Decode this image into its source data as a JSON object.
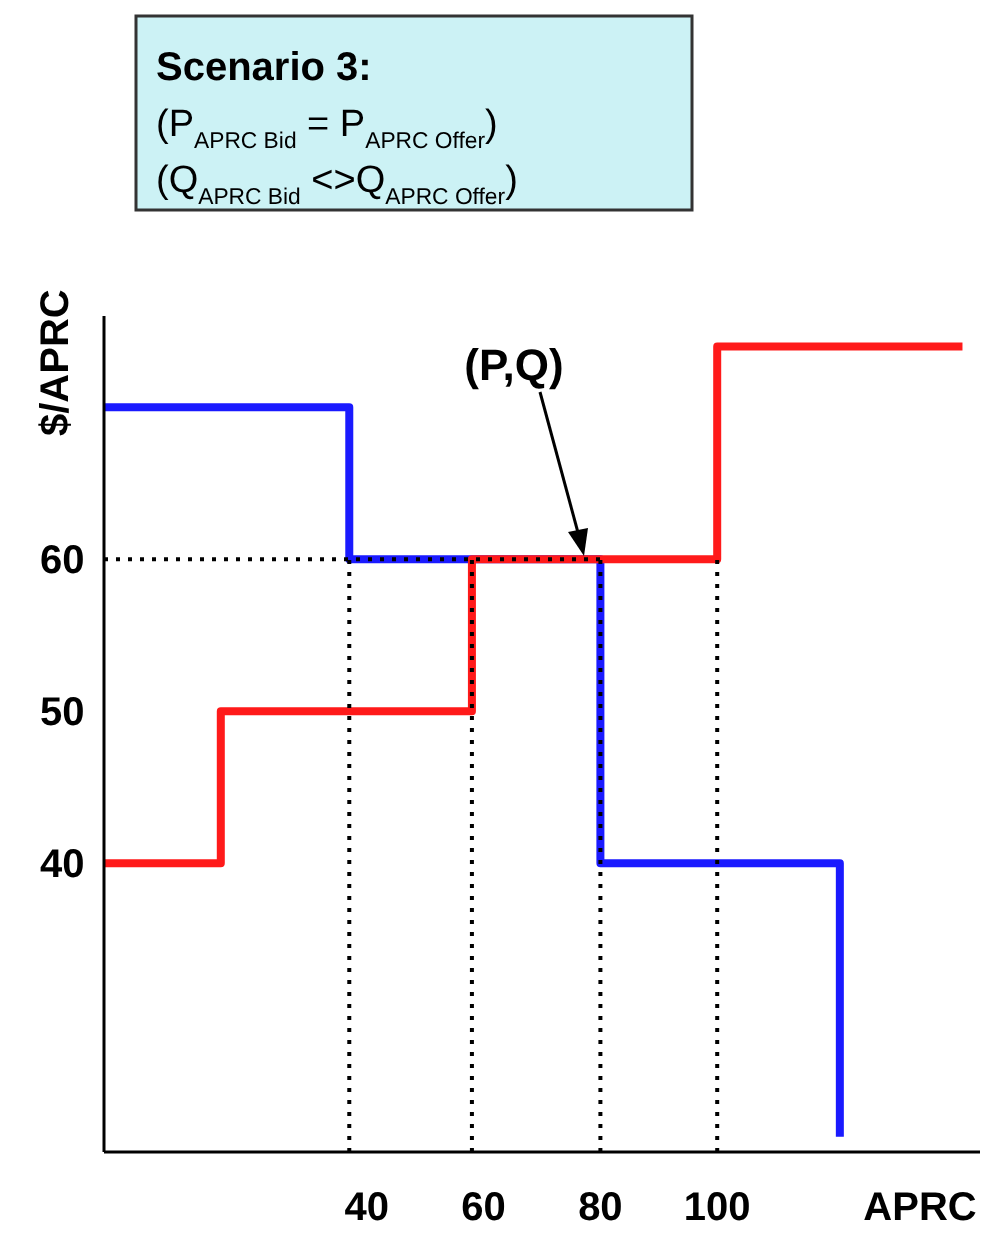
{
  "chart_data": {
    "type": "step",
    "title": "Scenario 3:",
    "subtitle": "(P$_{APRC Bid}$ = P$_{APRC Offer}$)\n(Q$_{APRC Bid}$ <>Q$_{APRC Offer}$)",
    "xlabel": "APRC",
    "ylabel": "$/APRC",
    "xlim": [
      -5,
      145
    ],
    "ylim": [
      21,
      76
    ],
    "xticks": [
      40,
      60,
      80,
      100
    ],
    "yticks": [
      40,
      50,
      60
    ],
    "series": [
      {
        "color": "#1a1aff",
        "x": [
          -5,
          37,
          80,
          121
        ],
        "values": [
          70,
          60,
          40,
          22
        ]
      },
      {
        "color": "#ff1a1a",
        "x": [
          -5,
          15,
          58,
          100,
          142
        ],
        "values": [
          40,
          50,
          60,
          74,
          74
        ]
      },
      {
        "type": "line",
        "color": "#000000",
        "line_style": "dotted",
        "x": [
          -5,
          80
        ],
        "values": [
          60,
          60
        ]
      },
      {
        "type": "line",
        "color": "#000000",
        "line_style": "dotted",
        "x": [
          37,
          37
        ],
        "values": [
          21,
          60
        ]
      },
      {
        "type": "line",
        "color": "#000000",
        "line_style": "dotted",
        "x": [
          58,
          58
        ],
        "values": [
          21,
          60
        ]
      },
      {
        "type": "line",
        "color": "#000000",
        "line_style": "dotted",
        "x": [
          80,
          80
        ],
        "values": [
          21,
          60
        ]
      },
      {
        "type": "line",
        "color": "#000000",
        "line_style": "dotted",
        "x": [
          100,
          100
        ],
        "values": [
          21,
          60
        ]
      }
    ],
    "annotations": [
      "(P,Q)"
    ]
  }
}
